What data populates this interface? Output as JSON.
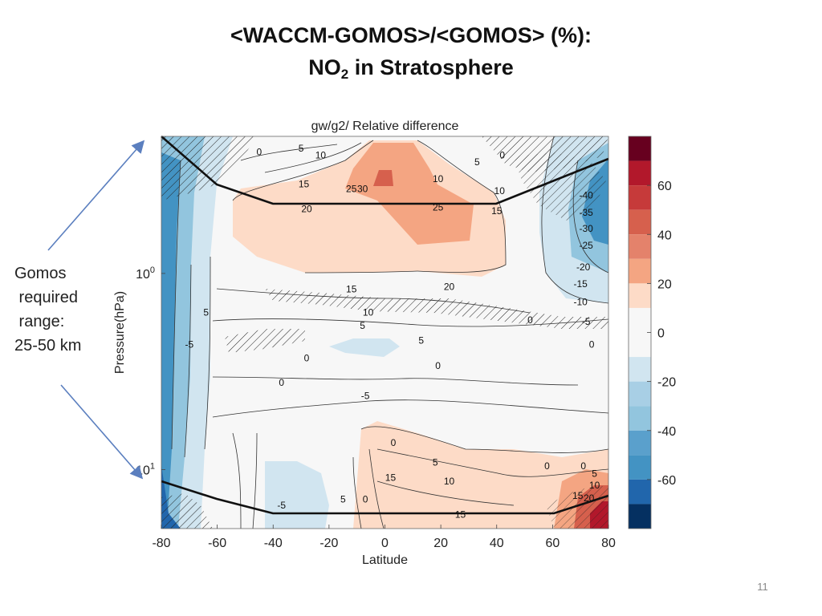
{
  "slide": {
    "title_line1": "<WACCM-GOMOS>/<GOMOS> (%):",
    "title_line2_main": "NO",
    "title_line2_sub": "2",
    "title_line2_rest": " in Stratosphere",
    "side_note_lines": [
      "Gomos",
      " required",
      " range:",
      "25-50 km"
    ],
    "page_number": "11"
  },
  "colors": {
    "arrow": "#5b7fbf",
    "boundary": "#111111",
    "background": "#ffffff"
  },
  "chart_data": {
    "type": "heatmap",
    "title": "gw/g2/ Relative difference",
    "xlabel": "Latitude",
    "ylabel": "Pressure(hPa)",
    "x_ticks": [
      -80,
      -60,
      -40,
      -20,
      0,
      20,
      40,
      60,
      80
    ],
    "xlim": [
      -80,
      80
    ],
    "y_scale": "log",
    "y_ticks": [
      {
        "value": 1,
        "base": "10",
        "exp": "0"
      },
      {
        "value": 10,
        "base": "10",
        "exp": "1"
      }
    ],
    "ylim_top_hPa": 0.2,
    "ylim_bottom_hPa": 20,
    "colorbar": {
      "ticks": [
        60,
        40,
        20,
        0,
        -20,
        -40,
        -60
      ],
      "bins": [
        {
          "from": 70,
          "to": 80,
          "color": "#67001f"
        },
        {
          "from": 60,
          "to": 70,
          "color": "#b2182b"
        },
        {
          "from": 50,
          "to": 60,
          "color": "#c63a3a"
        },
        {
          "from": 40,
          "to": 50,
          "color": "#d6604d"
        },
        {
          "from": 30,
          "to": 40,
          "color": "#e4826b"
        },
        {
          "from": 20,
          "to": 30,
          "color": "#f4a582"
        },
        {
          "from": 10,
          "to": 20,
          "color": "#fddbc7"
        },
        {
          "from": -10,
          "to": 10,
          "color": "#f7f7f7"
        },
        {
          "from": -20,
          "to": -10,
          "color": "#d1e5f0"
        },
        {
          "from": -30,
          "to": -20,
          "color": "#a8cfe5"
        },
        {
          "from": -40,
          "to": -30,
          "color": "#92c5de"
        },
        {
          "from": -50,
          "to": -40,
          "color": "#5aa0cc"
        },
        {
          "from": -60,
          "to": -50,
          "color": "#4393c3"
        },
        {
          "from": -70,
          "to": -60,
          "color": "#2166ac"
        },
        {
          "from": -80,
          "to": -70,
          "color": "#053061"
        }
      ]
    },
    "contour_labels": [
      {
        "lat": -45,
        "p": 0.24,
        "text": "0"
      },
      {
        "lat": -30,
        "p": 0.23,
        "text": "5"
      },
      {
        "lat": -23,
        "p": 0.25,
        "text": "10"
      },
      {
        "lat": -29,
        "p": 0.35,
        "text": "15"
      },
      {
        "lat": -28,
        "p": 0.47,
        "text": "20"
      },
      {
        "lat": -12,
        "p": 0.37,
        "text": "25"
      },
      {
        "lat": -8,
        "p": 0.37,
        "text": "30"
      },
      {
        "lat": 19,
        "p": 0.33,
        "text": "10"
      },
      {
        "lat": 33,
        "p": 0.27,
        "text": "5"
      },
      {
        "lat": 42,
        "p": 0.25,
        "text": "0"
      },
      {
        "lat": 41,
        "p": 0.38,
        "text": "10"
      },
      {
        "lat": 19,
        "p": 0.46,
        "text": "25"
      },
      {
        "lat": 40,
        "p": 0.48,
        "text": "15"
      },
      {
        "lat": 72,
        "p": 0.4,
        "text": "-40"
      },
      {
        "lat": 72,
        "p": 0.49,
        "text": "-35"
      },
      {
        "lat": 72,
        "p": 0.59,
        "text": "-30"
      },
      {
        "lat": 72,
        "p": 0.72,
        "text": "-25"
      },
      {
        "lat": 71,
        "p": 0.93,
        "text": "-20"
      },
      {
        "lat": 70,
        "p": 1.13,
        "text": "-15"
      },
      {
        "lat": 70,
        "p": 1.4,
        "text": "-10"
      },
      {
        "lat": 72,
        "p": 1.76,
        "text": "-5"
      },
      {
        "lat": 74,
        "p": 2.3,
        "text": "0"
      },
      {
        "lat": 52,
        "p": 1.73,
        "text": "0"
      },
      {
        "lat": -64,
        "p": 1.58,
        "text": "5"
      },
      {
        "lat": -70,
        "p": 2.3,
        "text": "-5"
      },
      {
        "lat": -12,
        "p": 1.2,
        "text": "15"
      },
      {
        "lat": -6,
        "p": 1.58,
        "text": "10"
      },
      {
        "lat": 23,
        "p": 1.17,
        "text": "20"
      },
      {
        "lat": -8,
        "p": 1.85,
        "text": "5"
      },
      {
        "lat": 13,
        "p": 2.2,
        "text": "5"
      },
      {
        "lat": -28,
        "p": 2.7,
        "text": "0"
      },
      {
        "lat": 19,
        "p": 2.95,
        "text": "0"
      },
      {
        "lat": -37,
        "p": 3.6,
        "text": "0"
      },
      {
        "lat": -7,
        "p": 4.2,
        "text": "-5"
      },
      {
        "lat": 3,
        "p": 7.3,
        "text": "0"
      },
      {
        "lat": 18,
        "p": 9.2,
        "text": "5"
      },
      {
        "lat": 58,
        "p": 9.6,
        "text": "0"
      },
      {
        "lat": 71,
        "p": 9.6,
        "text": "0"
      },
      {
        "lat": 75,
        "p": 10.5,
        "text": "5"
      },
      {
        "lat": 75,
        "p": 12.0,
        "text": "10"
      },
      {
        "lat": 23,
        "p": 11.5,
        "text": "10"
      },
      {
        "lat": 2,
        "p": 11.0,
        "text": "15"
      },
      {
        "lat": 69,
        "p": 13.6,
        "text": "15"
      },
      {
        "lat": 73,
        "p": 14.0,
        "text": "20"
      },
      {
        "lat": 27,
        "p": 17.0,
        "text": "15"
      },
      {
        "lat": -37,
        "p": 15.2,
        "text": "-5"
      },
      {
        "lat": -15,
        "p": 14.2,
        "text": "5"
      },
      {
        "lat": -7,
        "p": 14.2,
        "text": "0"
      }
    ]
  }
}
